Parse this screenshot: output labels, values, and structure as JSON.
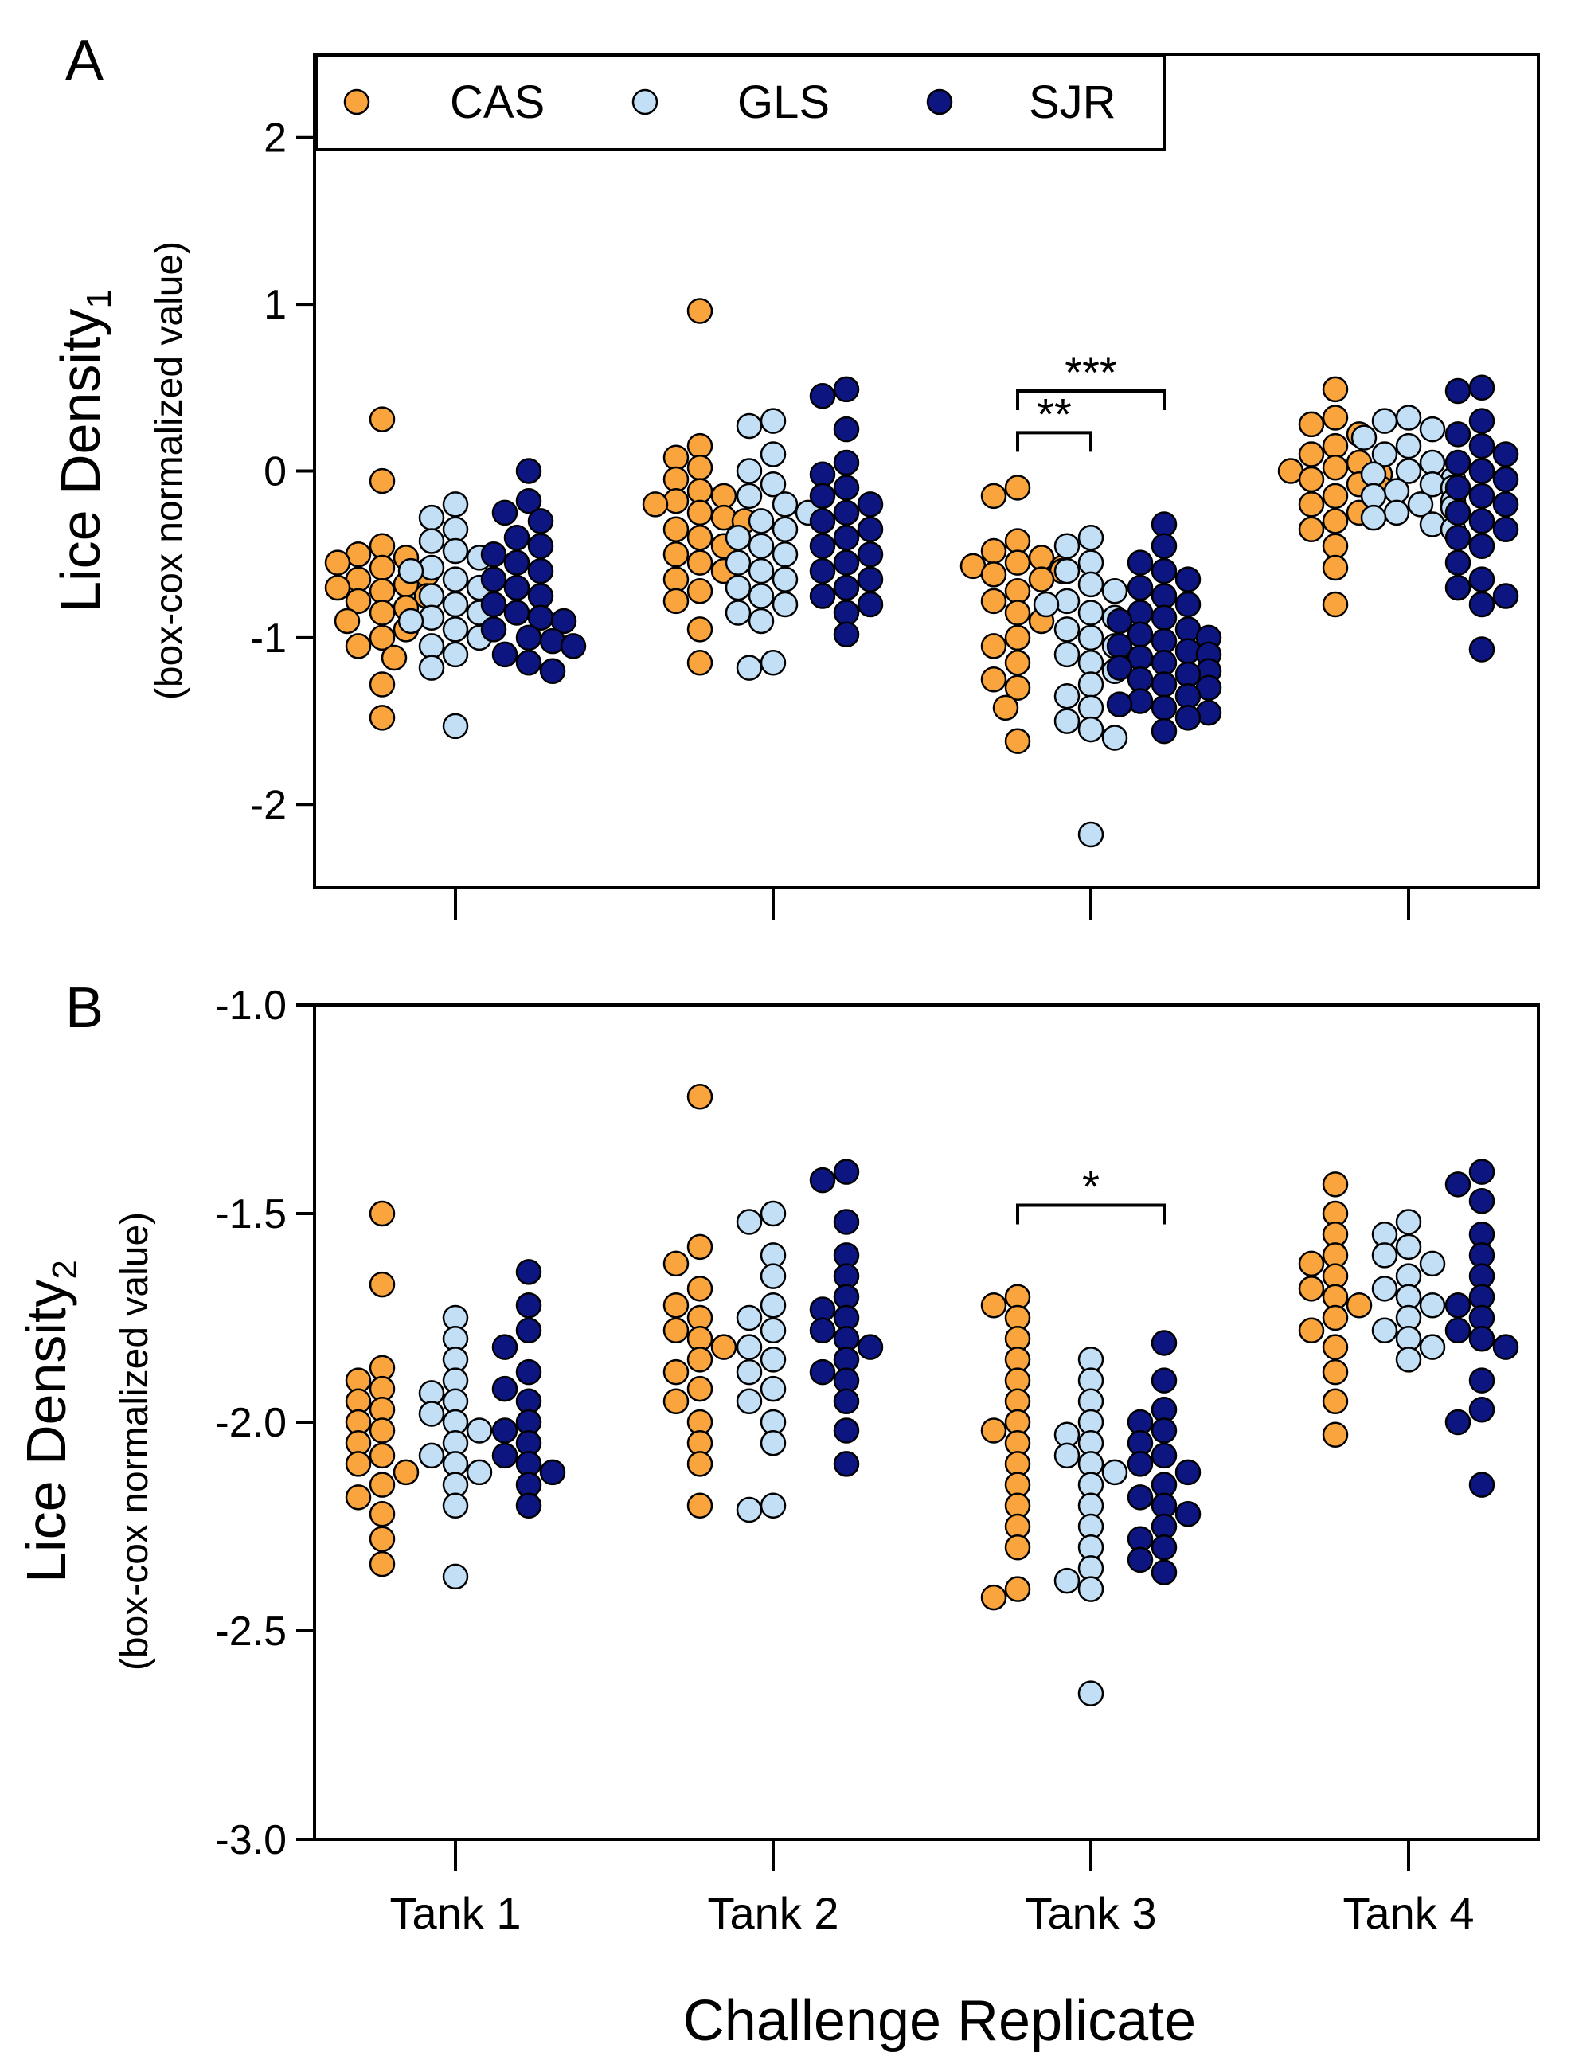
{
  "figure": {
    "xlabel": "Challenge Replicate",
    "categories": [
      "Tank 1",
      "Tank 2",
      "Tank 3",
      "Tank 4"
    ],
    "legend": [
      {
        "label": "CAS",
        "color": "#F9A43D"
      },
      {
        "label": "GLS",
        "color": "#C2DFF5"
      },
      {
        "label": "SJR",
        "color": "#0D1580"
      }
    ]
  },
  "chart_data": [
    {
      "type": "scatter",
      "panel_label": "A",
      "ylabel_main": "Lice Density",
      "ylabel_sub": "1",
      "ylabel_note": "(box-cox normalized value)",
      "ylim": [
        -2.5,
        2.5
      ],
      "yticks": [
        -2,
        -1,
        0,
        1,
        2
      ],
      "ytick_labels": [
        "-2",
        "-1",
        "0",
        "1",
        "2"
      ],
      "categories": [
        "Tank 1",
        "Tank 2",
        "Tank 3",
        "Tank 4"
      ],
      "legend_position": "top-left",
      "series": [
        {
          "name": "CAS",
          "color": "#F9A43D",
          "values": [
            [
              0.31,
              -0.06,
              -0.45,
              -0.5,
              -0.52,
              -0.55,
              -0.58,
              -0.6,
              -0.62,
              -0.65,
              -0.68,
              -0.7,
              -0.72,
              -0.75,
              -0.78,
              -0.82,
              -0.85,
              -0.9,
              -0.95,
              -1.0,
              -1.05,
              -1.12,
              -1.28,
              -1.48
            ],
            [
              0.96,
              0.15,
              0.08,
              0.02,
              -0.05,
              -0.12,
              -0.15,
              -0.18,
              -0.2,
              -0.25,
              -0.28,
              -0.3,
              -0.35,
              -0.4,
              -0.45,
              -0.5,
              -0.55,
              -0.6,
              -0.65,
              -0.72,
              -0.78,
              -0.95,
              -1.15
            ],
            [
              -0.1,
              -0.15,
              -0.42,
              -0.48,
              -0.52,
              -0.55,
              -0.57,
              -0.58,
              -0.6,
              -0.62,
              -0.65,
              -0.72,
              -0.78,
              -0.85,
              -0.9,
              -1.0,
              -1.05,
              -1.15,
              -1.25,
              -1.3,
              -1.42,
              -1.62
            ],
            [
              0.49,
              0.32,
              0.28,
              0.22,
              0.15,
              0.1,
              0.05,
              0.02,
              0.0,
              -0.02,
              -0.05,
              -0.08,
              -0.1,
              -0.15,
              -0.2,
              -0.25,
              -0.3,
              -0.35,
              -0.45,
              -0.58,
              -0.8
            ]
          ]
        },
        {
          "name": "GLS",
          "color": "#C2DFF5",
          "values": [
            [
              -0.2,
              -0.28,
              -0.35,
              -0.42,
              -0.48,
              -0.52,
              -0.58,
              -0.6,
              -0.65,
              -0.7,
              -0.75,
              -0.8,
              -0.85,
              -0.88,
              -0.9,
              -0.95,
              -1.0,
              -1.05,
              -1.1,
              -1.18,
              -1.53
            ],
            [
              0.3,
              0.27,
              0.1,
              0.0,
              -0.08,
              -0.15,
              -0.2,
              -0.25,
              -0.3,
              -0.35,
              -0.4,
              -0.45,
              -0.5,
              -0.55,
              -0.6,
              -0.65,
              -0.7,
              -0.75,
              -0.8,
              -0.85,
              -0.9,
              -1.15,
              -1.18
            ],
            [
              -0.4,
              -0.45,
              -0.55,
              -0.6,
              -0.68,
              -0.72,
              -0.78,
              -0.8,
              -0.85,
              -0.88,
              -0.9,
              -0.95,
              -1.0,
              -1.05,
              -1.1,
              -1.15,
              -1.2,
              -1.28,
              -1.35,
              -1.42,
              -1.5,
              -1.55,
              -1.6,
              -2.18
            ],
            [
              0.32,
              0.3,
              0.25,
              0.2,
              0.15,
              0.1,
              0.05,
              0.0,
              -0.02,
              -0.05,
              -0.08,
              -0.1,
              -0.12,
              -0.15,
              -0.18,
              -0.2,
              -0.22,
              -0.25,
              -0.28,
              -0.32,
              -0.35
            ]
          ]
        },
        {
          "name": "SJR",
          "color": "#0D1580",
          "values": [
            [
              0.0,
              -0.18,
              -0.25,
              -0.3,
              -0.4,
              -0.45,
              -0.5,
              -0.55,
              -0.6,
              -0.65,
              -0.7,
              -0.75,
              -0.8,
              -0.85,
              -0.88,
              -0.9,
              -0.95,
              -1.0,
              -1.02,
              -1.05,
              -1.1,
              -1.15,
              -1.2
            ],
            [
              0.49,
              0.45,
              0.25,
              0.05,
              -0.02,
              -0.1,
              -0.15,
              -0.2,
              -0.25,
              -0.3,
              -0.35,
              -0.4,
              -0.45,
              -0.5,
              -0.55,
              -0.6,
              -0.65,
              -0.7,
              -0.75,
              -0.8,
              -0.85,
              -0.98
            ],
            [
              -0.32,
              -0.45,
              -0.55,
              -0.6,
              -0.65,
              -0.7,
              -0.75,
              -0.8,
              -0.85,
              -0.88,
              -0.9,
              -0.95,
              -0.98,
              -1.0,
              -1.02,
              -1.05,
              -1.08,
              -1.1,
              -1.12,
              -1.15,
              -1.18,
              -1.2,
              -1.22,
              -1.25,
              -1.28,
              -1.3,
              -1.35,
              -1.38,
              -1.4,
              -1.42,
              -1.45,
              -1.48,
              -1.56
            ],
            [
              0.5,
              0.48,
              0.3,
              0.22,
              0.15,
              0.1,
              0.05,
              0.0,
              -0.05,
              -0.1,
              -0.15,
              -0.2,
              -0.25,
              -0.3,
              -0.35,
              -0.4,
              -0.45,
              -0.55,
              -0.65,
              -0.7,
              -0.75,
              -0.8,
              -1.07
            ]
          ]
        }
      ],
      "annotations": [
        {
          "text": "***",
          "tank": 3,
          "from": "CAS",
          "to": "SJR",
          "y": 0.48
        },
        {
          "text": "**",
          "tank": 3,
          "from": "CAS",
          "to": "GLS",
          "y": 0.23
        }
      ]
    },
    {
      "type": "scatter",
      "panel_label": "B",
      "ylabel_main": "Lice Density",
      "ylabel_sub": "2",
      "ylabel_note": "(box-cox normalized value)",
      "ylim": [
        -3.0,
        -1.0
      ],
      "yticks": [
        -3.0,
        -2.5,
        -2.0,
        -1.5,
        -1.0
      ],
      "ytick_labels": [
        "-3.0",
        "-2.5",
        "-2.0",
        "-1.5",
        "-1.0"
      ],
      "categories": [
        "Tank 1",
        "Tank 2",
        "Tank 3",
        "Tank 4"
      ],
      "series": [
        {
          "name": "CAS",
          "color": "#F9A43D",
          "values": [
            [
              -1.5,
              -1.67,
              -1.87,
              -1.9,
              -1.92,
              -1.95,
              -1.97,
              -2.0,
              -2.02,
              -2.05,
              -2.08,
              -2.1,
              -2.12,
              -2.15,
              -2.18,
              -2.22,
              -2.28,
              -2.34
            ],
            [
              -1.22,
              -1.58,
              -1.62,
              -1.68,
              -1.72,
              -1.75,
              -1.78,
              -1.8,
              -1.82,
              -1.85,
              -1.88,
              -1.92,
              -1.95,
              -2.0,
              -2.05,
              -2.1,
              -2.2
            ],
            [
              -1.7,
              -1.72,
              -1.75,
              -1.8,
              -1.85,
              -1.9,
              -1.95,
              -2.0,
              -2.02,
              -2.05,
              -2.1,
              -2.15,
              -2.2,
              -2.25,
              -2.3,
              -2.4,
              -2.42
            ],
            [
              -1.43,
              -1.5,
              -1.55,
              -1.6,
              -1.62,
              -1.65,
              -1.68,
              -1.7,
              -1.72,
              -1.75,
              -1.78,
              -1.82,
              -1.88,
              -1.95,
              -2.03
            ]
          ]
        },
        {
          "name": "GLS",
          "color": "#C2DFF5",
          "values": [
            [
              -1.75,
              -1.8,
              -1.85,
              -1.9,
              -1.93,
              -1.95,
              -1.98,
              -2.0,
              -2.02,
              -2.05,
              -2.08,
              -2.1,
              -2.12,
              -2.15,
              -2.2,
              -2.37
            ],
            [
              -1.5,
              -1.52,
              -1.6,
              -1.65,
              -1.72,
              -1.75,
              -1.78,
              -1.82,
              -1.85,
              -1.88,
              -1.92,
              -1.95,
              -2.0,
              -2.05,
              -2.2,
              -2.21
            ],
            [
              -1.85,
              -1.9,
              -1.95,
              -2.0,
              -2.03,
              -2.05,
              -2.08,
              -2.1,
              -2.12,
              -2.15,
              -2.2,
              -2.25,
              -2.3,
              -2.35,
              -2.38,
              -2.4,
              -2.65
            ],
            [
              -1.52,
              -1.55,
              -1.58,
              -1.6,
              -1.62,
              -1.65,
              -1.68,
              -1.7,
              -1.72,
              -1.75,
              -1.78,
              -1.8,
              -1.82,
              -1.85
            ]
          ]
        },
        {
          "name": "SJR",
          "color": "#0D1580",
          "values": [
            [
              -1.64,
              -1.72,
              -1.78,
              -1.82,
              -1.88,
              -1.92,
              -1.95,
              -2.0,
              -2.02,
              -2.05,
              -2.08,
              -2.1,
              -2.12,
              -2.15,
              -2.2
            ],
            [
              -1.4,
              -1.42,
              -1.52,
              -1.6,
              -1.65,
              -1.7,
              -1.73,
              -1.75,
              -1.78,
              -1.8,
              -1.82,
              -1.85,
              -1.88,
              -1.9,
              -1.95,
              -2.02,
              -2.1
            ],
            [
              -1.81,
              -1.9,
              -1.97,
              -2.0,
              -2.02,
              -2.05,
              -2.08,
              -2.1,
              -2.12,
              -2.15,
              -2.18,
              -2.2,
              -2.22,
              -2.25,
              -2.28,
              -2.3,
              -2.33,
              -2.36
            ],
            [
              -1.4,
              -1.43,
              -1.47,
              -1.55,
              -1.6,
              -1.65,
              -1.7,
              -1.72,
              -1.75,
              -1.78,
              -1.8,
              -1.82,
              -1.9,
              -1.97,
              -2.0,
              -2.15
            ]
          ]
        }
      ],
      "annotations": [
        {
          "text": "*",
          "tank": 3,
          "from": "CAS",
          "to": "SJR",
          "y": -1.48
        }
      ]
    }
  ]
}
